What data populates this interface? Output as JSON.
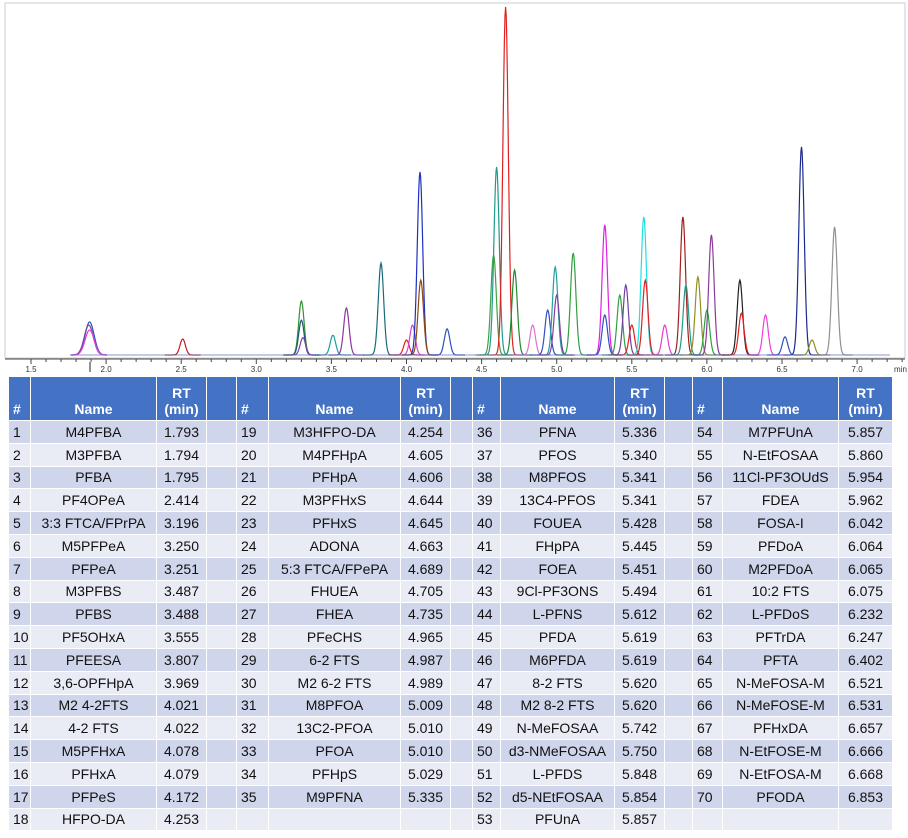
{
  "chart_data": {
    "type": "line",
    "xlabel": "min",
    "xlim": [
      1.5,
      7.32
    ],
    "xticks": [
      "1.5",
      "2.0",
      "2.5",
      "3.0",
      "3.5",
      "4.0",
      "4.5",
      "5.0",
      "5.5",
      "6.0",
      "6.5",
      "7.0"
    ],
    "ylim": [
      0,
      100
    ],
    "grid": false,
    "peaks": [
      {
        "rt": 1.89,
        "h": 9.5,
        "color": "#3050c0"
      },
      {
        "rt": 1.885,
        "h": 8.6,
        "color": "#8040a0"
      },
      {
        "rt": 1.89,
        "h": 7.2,
        "color": "#e040d0"
      },
      {
        "rt": 2.51,
        "h": 4.6,
        "color": "#c02020"
      },
      {
        "rt": 3.3,
        "h": 15.5,
        "color": "#30903a"
      },
      {
        "rt": 3.3,
        "h": 10,
        "color": "#205a70"
      },
      {
        "rt": 3.31,
        "h": 5,
        "color": "#8040a0"
      },
      {
        "rt": 3.51,
        "h": 5.7,
        "color": "#20a0a0"
      },
      {
        "rt": 3.6,
        "h": 13.5,
        "color": "#8a3a9a"
      },
      {
        "rt": 3.83,
        "h": 26.4,
        "color": "#1a6a7a"
      },
      {
        "rt": 4.0,
        "h": 4.3,
        "color": "#e02020"
      },
      {
        "rt": 4.04,
        "h": 8.6,
        "color": "#e040d0"
      },
      {
        "rt": 4.09,
        "h": 52.6,
        "color": "#2030c0"
      },
      {
        "rt": 4.095,
        "h": 21.5,
        "color": "#8a4a10"
      },
      {
        "rt": 4.27,
        "h": 7.5,
        "color": "#3050c0"
      },
      {
        "rt": 4.58,
        "h": 28.7,
        "color": "#40a040"
      },
      {
        "rt": 4.6,
        "h": 54,
        "color": "#209a8a"
      },
      {
        "rt": 4.66,
        "h": 100,
        "color": "#e02020"
      },
      {
        "rt": 4.72,
        "h": 24.4,
        "color": "#208a30"
      },
      {
        "rt": 4.84,
        "h": 8.6,
        "color": "#e070d0"
      },
      {
        "rt": 4.94,
        "h": 12.9,
        "color": "#3050c0"
      },
      {
        "rt": 4.99,
        "h": 25.3,
        "color": "#20a0a0"
      },
      {
        "rt": 5.0,
        "h": 17.2,
        "color": "#8040a0"
      },
      {
        "rt": 5.11,
        "h": 29.3,
        "color": "#30a040"
      },
      {
        "rt": 5.32,
        "h": 37.4,
        "color": "#e020e0"
      },
      {
        "rt": 5.32,
        "h": 11.5,
        "color": "#3050c0"
      },
      {
        "rt": 5.42,
        "h": 17.2,
        "color": "#30a040"
      },
      {
        "rt": 5.46,
        "h": 20.1,
        "color": "#7040a0"
      },
      {
        "rt": 5.5,
        "h": 8.6,
        "color": "#e02020"
      },
      {
        "rt": 5.58,
        "h": 39.7,
        "color": "#20e0e0"
      },
      {
        "rt": 5.59,
        "h": 21.5,
        "color": "#e02020"
      },
      {
        "rt": 5.72,
        "h": 8.6,
        "color": "#e040d0"
      },
      {
        "rt": 5.84,
        "h": 39.7,
        "color": "#a02020"
      },
      {
        "rt": 5.86,
        "h": 20.1,
        "color": "#209a8a"
      },
      {
        "rt": 5.94,
        "h": 22.4,
        "color": "#909020"
      },
      {
        "rt": 6.0,
        "h": 12.9,
        "color": "#30a040"
      },
      {
        "rt": 6.03,
        "h": 34.5,
        "color": "#8a3a9a"
      },
      {
        "rt": 6.22,
        "h": 21.5,
        "color": "#202020"
      },
      {
        "rt": 6.23,
        "h": 12,
        "color": "#e02020"
      },
      {
        "rt": 6.39,
        "h": 11.5,
        "color": "#f040e0"
      },
      {
        "rt": 6.52,
        "h": 5.2,
        "color": "#3050c0"
      },
      {
        "rt": 6.63,
        "h": 59.8,
        "color": "#1a2a90"
      },
      {
        "rt": 6.7,
        "h": 4.3,
        "color": "#909020"
      },
      {
        "rt": 6.85,
        "h": 36.8,
        "color": "#909090"
      }
    ]
  },
  "table": {
    "headers": [
      "#",
      "Name",
      "RT (min)"
    ],
    "header_color": "#4472C4",
    "row_colors": [
      "#CFD5EA",
      "#E9EBF5"
    ],
    "groups": [
      [
        [
          "1",
          "M4PFBA",
          "1.793"
        ],
        [
          "2",
          "M3PFBA",
          "1.794"
        ],
        [
          "3",
          "PFBA",
          "1.795"
        ],
        [
          "4",
          "PF4OPeA",
          "2.414"
        ],
        [
          "5",
          "3:3 FTCA/FPrPA",
          "3.196"
        ],
        [
          "6",
          "M5PFPeA",
          "3.250"
        ],
        [
          "7",
          "PFPeA",
          "3.251"
        ],
        [
          "8",
          "M3PFBS",
          "3.487"
        ],
        [
          "9",
          "PFBS",
          "3.488"
        ],
        [
          "10",
          "PF5OHxA",
          "3.555"
        ],
        [
          "11",
          "PFEESA",
          "3.807"
        ],
        [
          "12",
          "3,6-OPFHpA",
          "3.969"
        ],
        [
          "13",
          "M2 4-2FTS",
          "4.021"
        ],
        [
          "14",
          "4-2 FTS",
          "4.022"
        ],
        [
          "15",
          "M5PFHxA",
          "4.078"
        ],
        [
          "16",
          "PFHxA",
          "4.079"
        ],
        [
          "17",
          "PFPeS",
          "4.172"
        ],
        [
          "18",
          "HFPO-DA",
          "4.253"
        ]
      ],
      [
        [
          "19",
          "M3HFPO-DA",
          "4.254"
        ],
        [
          "20",
          "M4PFHpA",
          "4.605"
        ],
        [
          "21",
          "PFHpA",
          "4.606"
        ],
        [
          "22",
          "M3PFHxS",
          "4.644"
        ],
        [
          "23",
          "PFHxS",
          "4.645"
        ],
        [
          "24",
          "ADONA",
          "4.663"
        ],
        [
          "25",
          "5:3 FTCA/FPePA",
          "4.689"
        ],
        [
          "26",
          "FHUEA",
          "4.705"
        ],
        [
          "27",
          "FHEA",
          "4.735"
        ],
        [
          "28",
          "PFeCHS",
          "4.965"
        ],
        [
          "29",
          "6-2 FTS",
          "4.987"
        ],
        [
          "30",
          "M2 6-2 FTS",
          "4.989"
        ],
        [
          "31",
          "M8PFOA",
          "5.009"
        ],
        [
          "32",
          "13C2-PFOA",
          "5.010"
        ],
        [
          "33",
          "PFOA",
          "5.010"
        ],
        [
          "34",
          "PFHpS",
          "5.029"
        ],
        [
          "35",
          "M9PFNA",
          "5.335"
        ]
      ],
      [
        [
          "36",
          "PFNA",
          "5.336"
        ],
        [
          "37",
          "PFOS",
          "5.340"
        ],
        [
          "38",
          "M8PFOS",
          "5.341"
        ],
        [
          "39",
          "13C4-PFOS",
          "5.341"
        ],
        [
          "40",
          "FOUEA",
          "5.428"
        ],
        [
          "41",
          "FHpPA",
          "5.445"
        ],
        [
          "42",
          "FOEA",
          "5.451"
        ],
        [
          "43",
          "9Cl-PF3ONS",
          "5.494"
        ],
        [
          "44",
          "L-PFNS",
          "5.612"
        ],
        [
          "45",
          "PFDA",
          "5.619"
        ],
        [
          "46",
          "M6PFDA",
          "5.619"
        ],
        [
          "47",
          "8-2 FTS",
          "5.620"
        ],
        [
          "48",
          "M2 8-2 FTS",
          "5.620"
        ],
        [
          "49",
          "N-MeFOSAA",
          "5.742"
        ],
        [
          "50",
          "d3-NMeFOSAA",
          "5.750"
        ],
        [
          "51",
          "L-PFDS",
          "5.848"
        ],
        [
          "52",
          "d5-NEtFOSAA",
          "5.854"
        ],
        [
          "53",
          "PFUnA",
          "5.857"
        ]
      ],
      [
        [
          "54",
          "M7PFUnA",
          "5.857"
        ],
        [
          "55",
          "N-EtFOSAA",
          "5.860"
        ],
        [
          "56",
          "11Cl-PF3OUdS",
          "5.954"
        ],
        [
          "57",
          "FDEA",
          "5.962"
        ],
        [
          "58",
          "FOSA-I",
          "6.042"
        ],
        [
          "59",
          "PFDoA",
          "6.064"
        ],
        [
          "60",
          "M2PFDoA",
          "6.065"
        ],
        [
          "61",
          "10:2 FTS",
          "6.075"
        ],
        [
          "62",
          "L-PFDoS",
          "6.232"
        ],
        [
          "63",
          "PFTrDA",
          "6.247"
        ],
        [
          "64",
          "PFTA",
          "6.402"
        ],
        [
          "65",
          "N-MeFOSA-M",
          "6.521"
        ],
        [
          "66",
          "N-MeFOSE-M",
          "6.531"
        ],
        [
          "67",
          "PFHxDA",
          "6.657"
        ],
        [
          "68",
          "N-EtFOSE-M",
          "6.666"
        ],
        [
          "69",
          "N-EtFOSA-M",
          "6.668"
        ],
        [
          "70",
          "PFODA",
          "6.853"
        ]
      ]
    ]
  }
}
